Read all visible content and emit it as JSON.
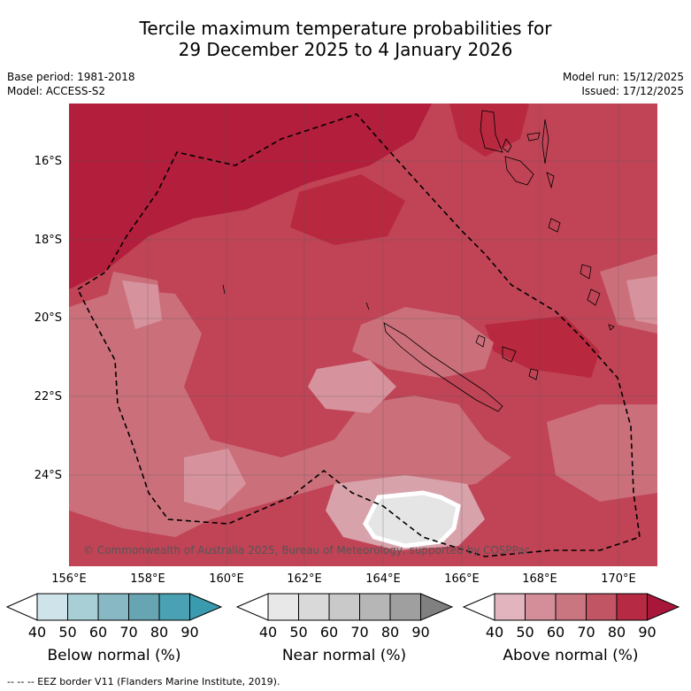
{
  "title": {
    "line1": "Tercile maximum temperature probabilities for",
    "line2": "29 December 2025 to 4 January 2026"
  },
  "meta": {
    "base_period": "Base period: 1981-2018",
    "model": "Model: ACCESS-S2",
    "model_run": "Model run: 15/12/2025",
    "issued": "Issued: 17/12/2025"
  },
  "map": {
    "copyright": "© Commonwealth of Australia 2025, Bureau of Meteorology, supported by COSPPac",
    "lat_labels": [
      "16°S",
      "18°S",
      "20°S",
      "22°S",
      "24°S"
    ],
    "lon_labels": [
      "156°E",
      "158°E",
      "160°E",
      "162°E",
      "164°E",
      "166°E",
      "168°E",
      "170°E"
    ]
  },
  "colorbars": [
    {
      "title": "Below normal (%)",
      "ticks": [
        "40",
        "50",
        "60",
        "70",
        "80",
        "90"
      ],
      "colors": [
        "#cfe4ea",
        "#a9cfd6",
        "#88b8c3",
        "#68a5b3",
        "#4aa1b3",
        "#3a9aae"
      ]
    },
    {
      "title": "Near normal (%)",
      "ticks": [
        "40",
        "50",
        "60",
        "70",
        "80",
        "90"
      ],
      "colors": [
        "#e8e8e8",
        "#d9d9d9",
        "#c9c9c9",
        "#b6b6b6",
        "#9f9f9f",
        "#808080"
      ]
    },
    {
      "title": "Above normal (%)",
      "ticks": [
        "40",
        "50",
        "60",
        "70",
        "80",
        "90"
      ],
      "colors": [
        "#e1b4be",
        "#d48e99",
        "#ca7680",
        "#c25563",
        "#b62b43",
        "#a8173a"
      ]
    }
  ],
  "footer": "-- -- -- EEZ border V11 (Flanders Marine Institute, 2019)."
}
